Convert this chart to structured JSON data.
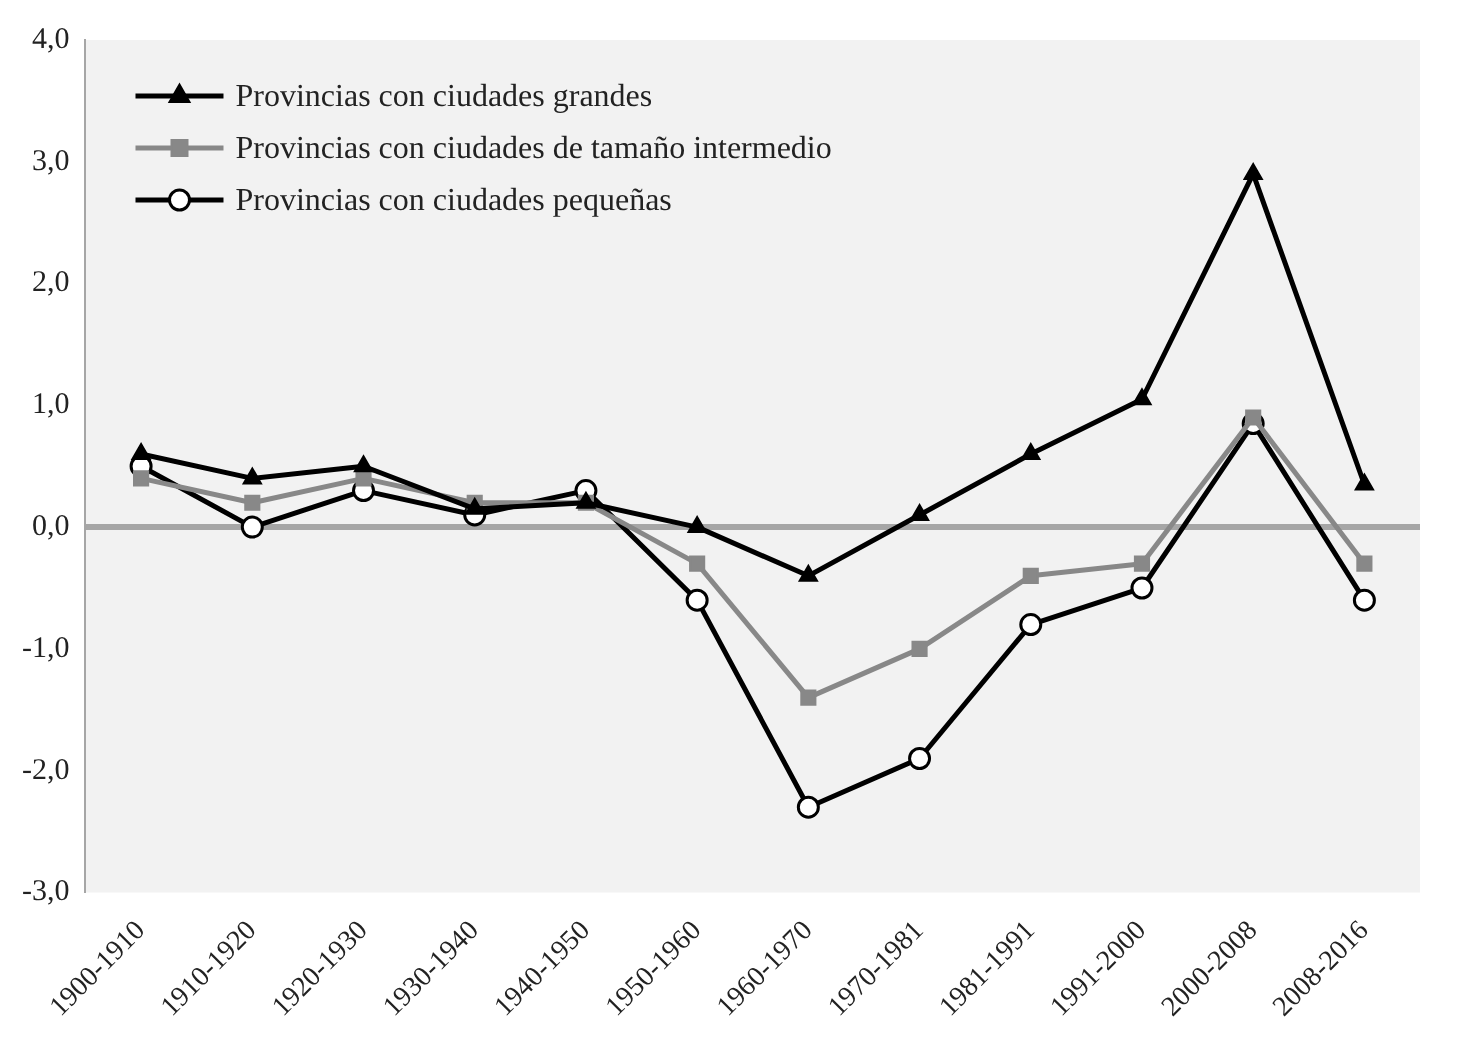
{
  "chart_data": {
    "type": "line",
    "categories": [
      "1900-1910",
      "1910-1920",
      "1920-1930",
      "1930-1940",
      "1940-1950",
      "1950-1960",
      "1960-1970",
      "1970-1981",
      "1981-1991",
      "1991-2000",
      "2000-2008",
      "2008-2016"
    ],
    "series": [
      {
        "name": "Provincias con ciudades grandes",
        "color": "#000000",
        "marker": "triangle",
        "values": [
          0.6,
          0.4,
          0.5,
          0.15,
          0.2,
          0.0,
          -0.4,
          0.1,
          0.6,
          1.05,
          2.9,
          0.35
        ]
      },
      {
        "name": "Provincias con ciudades de tamaño intermedio",
        "color": "#888888",
        "marker": "square",
        "values": [
          0.4,
          0.2,
          0.4,
          0.2,
          0.2,
          -0.3,
          -1.4,
          -1.0,
          -0.4,
          -0.3,
          0.9,
          -0.3
        ]
      },
      {
        "name": "Provincias con ciudades pequeñas",
        "color": "#000000",
        "marker": "circle",
        "values": [
          0.5,
          0.0,
          0.3,
          0.1,
          0.3,
          -0.6,
          -2.3,
          -1.9,
          -0.8,
          -0.5,
          0.85,
          -0.6
        ]
      }
    ],
    "ylim": [
      -3,
      4
    ],
    "yticks": [
      {
        "value": -3,
        "label": "-3,0"
      },
      {
        "value": -2,
        "label": "-2,0"
      },
      {
        "value": -1,
        "label": "-1,0"
      },
      {
        "value": 0,
        "label": "0,0"
      },
      {
        "value": 1,
        "label": "1,0"
      },
      {
        "value": 2,
        "label": "2,0"
      },
      {
        "value": 3,
        "label": "3,0"
      },
      {
        "value": 4,
        "label": "4,0"
      }
    ],
    "ref_lines": [
      {
        "axis": "y",
        "value": 0,
        "color": "#a6a6a6"
      }
    ],
    "grid": false,
    "legend": "top left"
  }
}
